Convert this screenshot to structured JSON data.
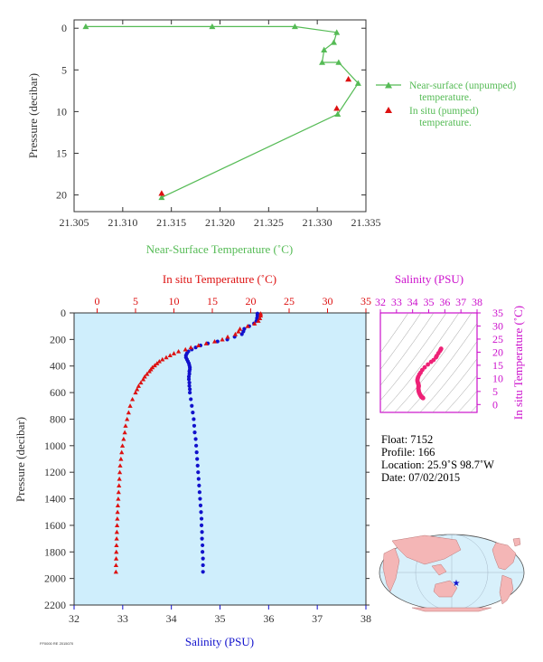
{
  "colors": {
    "green": "#55bb55",
    "red": "#dd1111",
    "blue": "#1111cc",
    "magenta": "#cc11cc",
    "pink": "#ee2277",
    "panel_bg": "#cfeefc",
    "dark": "#333333",
    "land": "#f4b6b6",
    "ocean": "#d8f0fb"
  },
  "info": {
    "float": "Float:  7152",
    "profile": "Profile:  166",
    "location": "Location:  25.9˚S  98.7˚W",
    "date": "Date:  07/02/2015"
  },
  "footer_code": "FF0000 RE 2015070",
  "chart_data": [
    {
      "id": "near-surface",
      "type": "line",
      "xlabel": "Near-Surface Temperature (˚C)",
      "ylabel": "Pressure (decibar)",
      "xlim": [
        21.305,
        21.335
      ],
      "ylim": [
        22,
        -1
      ],
      "xticks": [
        21.305,
        21.31,
        21.315,
        21.32,
        21.325,
        21.33,
        21.335
      ],
      "xtick_labels": [
        "21.305",
        "21.310",
        "21.315",
        "21.320",
        "21.325",
        "21.330",
        "21.335"
      ],
      "yticks": [
        0,
        5,
        10,
        15,
        20
      ],
      "ytick_labels": [
        "0",
        "5",
        "10",
        "15",
        "20"
      ],
      "legend_position": "right",
      "series": [
        {
          "name": "Near-surface (unpumped) temperature.",
          "name_lines": [
            "Near-surface (unpumped)",
            "temperature."
          ],
          "marker": "triangle",
          "line": true,
          "x": [
            21.3062,
            21.3192,
            21.3277,
            21.332,
            21.3317,
            21.3307,
            21.3305,
            21.3322,
            21.3342,
            21.3321,
            21.314
          ],
          "y": [
            -0.2,
            -0.2,
            -0.2,
            0.5,
            1.7,
            2.6,
            4.1,
            4.1,
            6.6,
            10.3,
            20.3
          ]
        },
        {
          "name": "In situ (pumped) temperature.",
          "name_lines": [
            "In situ (pumped)",
            "temperature."
          ],
          "marker": "triangle",
          "line": false,
          "x": [
            21.3332,
            21.332,
            21.314
          ],
          "y": [
            6.1,
            9.6,
            19.8
          ]
        }
      ]
    },
    {
      "id": "profile",
      "type": "scatter",
      "x_top_label": "In situ Temperature (˚C)",
      "x_bottom_label": "Salinity (PSU)",
      "ylabel": "Pressure (decibar)",
      "temp_lim": [
        -3,
        35
      ],
      "sal_lim": [
        32,
        38
      ],
      "pressure_lim": [
        2200,
        0
      ],
      "temp_ticks": [
        0,
        5,
        10,
        15,
        20,
        25,
        30,
        35
      ],
      "sal_ticks": [
        32,
        33,
        34,
        35,
        36,
        37,
        38
      ],
      "pressure_ticks": [
        0,
        200,
        400,
        600,
        800,
        1000,
        1200,
        1400,
        1600,
        1800,
        2000,
        2200
      ],
      "series": [
        {
          "name": "In situ Temperature (˚C)",
          "marker": "triangle",
          "pressure": [
            5,
            20,
            40,
            60,
            80,
            100,
            120,
            140,
            160,
            180,
            200,
            215,
            230,
            245,
            260,
            275,
            290,
            305,
            320,
            335,
            350,
            365,
            380,
            395,
            410,
            425,
            440,
            460,
            480,
            500,
            525,
            550,
            575,
            600,
            650,
            700,
            750,
            800,
            850,
            900,
            950,
            1000,
            1050,
            1100,
            1150,
            1200,
            1250,
            1300,
            1350,
            1400,
            1450,
            1500,
            1550,
            1600,
            1650,
            1700,
            1750,
            1800,
            1850,
            1900,
            1950
          ],
          "temp": [
            21.3,
            21.3,
            21.2,
            21.0,
            20.5,
            19.6,
            18.6,
            18.4,
            18.0,
            17.0,
            16.3,
            15.3,
            14.2,
            13.2,
            12.2,
            11.5,
            10.6,
            10.0,
            9.5,
            9.0,
            8.5,
            8.1,
            7.8,
            7.5,
            7.2,
            7.0,
            6.8,
            6.5,
            6.2,
            6.0,
            5.7,
            5.4,
            5.2,
            5.0,
            4.6,
            4.3,
            4.1,
            3.9,
            3.7,
            3.6,
            3.45,
            3.3,
            3.2,
            3.1,
            3.0,
            2.95,
            2.9,
            2.85,
            2.8,
            2.75,
            2.7,
            2.66,
            2.63,
            2.6,
            2.57,
            2.54,
            2.52,
            2.5,
            2.48,
            2.46,
            2.45
          ]
        },
        {
          "name": "Salinity (PSU)",
          "marker": "circle",
          "pressure": [
            5,
            20,
            40,
            60,
            80,
            100,
            120,
            140,
            160,
            180,
            200,
            215,
            230,
            245,
            260,
            275,
            290,
            305,
            320,
            335,
            350,
            365,
            380,
            395,
            410,
            425,
            440,
            460,
            480,
            500,
            525,
            550,
            575,
            600,
            650,
            700,
            750,
            800,
            850,
            900,
            950,
            1000,
            1050,
            1100,
            1150,
            1200,
            1250,
            1300,
            1350,
            1400,
            1450,
            1500,
            1550,
            1600,
            1650,
            1700,
            1750,
            1800,
            1850,
            1900,
            1950
          ],
          "salinity": [
            35.77,
            35.77,
            35.76,
            35.75,
            35.7,
            35.6,
            35.5,
            35.48,
            35.45,
            35.3,
            35.15,
            34.95,
            34.75,
            34.6,
            34.5,
            34.42,
            34.35,
            34.32,
            34.3,
            34.3,
            34.32,
            34.34,
            34.36,
            34.37,
            34.38,
            34.38,
            34.37,
            34.37,
            34.36,
            34.36,
            34.37,
            34.37,
            34.38,
            34.38,
            34.4,
            34.42,
            34.44,
            34.46,
            34.47,
            34.48,
            34.5,
            34.51,
            34.52,
            34.53,
            34.54,
            34.55,
            34.56,
            34.57,
            34.58,
            34.59,
            34.6,
            34.61,
            34.62,
            34.62,
            34.63,
            34.63,
            34.64,
            34.64,
            34.65,
            34.65,
            34.65
          ]
        }
      ]
    },
    {
      "id": "ts",
      "type": "scatter",
      "xlabel": "Salinity (PSU)",
      "ylabel": "In situ Temperature (˚C)",
      "xlim": [
        32,
        38
      ],
      "ylim": [
        -3,
        35
      ],
      "xticks": [
        32,
        33,
        34,
        35,
        36,
        37,
        38
      ],
      "yticks": [
        0,
        5,
        10,
        15,
        20,
        25,
        30,
        35
      ]
    },
    {
      "id": "map",
      "type": "map",
      "float_lon": -98.7,
      "float_lat": -25.9
    }
  ]
}
